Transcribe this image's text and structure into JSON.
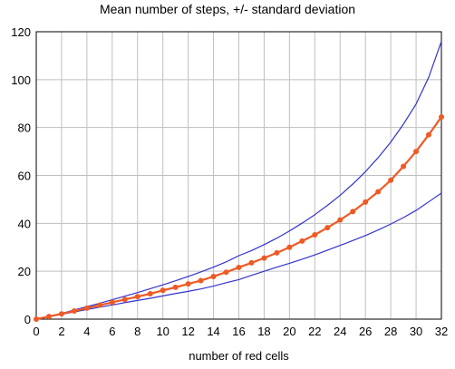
{
  "chart_data": {
    "type": "line",
    "title": "Mean number of steps, +/- standard deviation",
    "xlabel": "number of red cells",
    "ylabel": "",
    "xlim": [
      0,
      32
    ],
    "ylim": [
      0,
      120
    ],
    "xticks": [
      0,
      2,
      4,
      6,
      8,
      10,
      12,
      14,
      16,
      18,
      20,
      22,
      24,
      26,
      28,
      30,
      32
    ],
    "yticks": [
      0,
      20,
      40,
      60,
      80,
      100,
      120
    ],
    "grid": true,
    "legend": "none",
    "x": [
      0,
      1,
      2,
      3,
      4,
      5,
      6,
      7,
      8,
      9,
      10,
      11,
      12,
      13,
      14,
      15,
      16,
      17,
      18,
      19,
      20,
      21,
      22,
      23,
      24,
      25,
      26,
      27,
      28,
      29,
      30,
      31,
      32
    ],
    "series": [
      {
        "role": "mean",
        "color": "#ee5a24",
        "markers": true,
        "values": [
          0,
          1.1,
          2.2,
          3.4,
          4.6,
          5.8,
          7.0,
          8.2,
          9.4,
          10.6,
          12.0,
          13.3,
          14.7,
          16.1,
          17.8,
          19.6,
          21.6,
          23.5,
          25.5,
          27.7,
          30.0,
          32.6,
          35.2,
          38.2,
          41.4,
          44.9,
          48.9,
          53.2,
          58.0,
          63.8,
          70.0,
          77.0,
          84.4
        ]
      },
      {
        "role": "mean+sd",
        "color": "#3333cc",
        "markers": false,
        "values": [
          0,
          1.2,
          2.4,
          3.8,
          5.2,
          6.6,
          8.1,
          9.6,
          11.1,
          12.7,
          14.3,
          16.0,
          17.8,
          19.7,
          21.7,
          23.9,
          26.5,
          28.6,
          31.1,
          33.8,
          36.8,
          40.1,
          43.6,
          47.5,
          51.7,
          56.4,
          61.6,
          67.4,
          73.9,
          81.4,
          89.8,
          101.0,
          116.0
        ]
      },
      {
        "role": "mean-sd",
        "color": "#3333cc",
        "markers": false,
        "values": [
          0,
          1.0,
          2.0,
          3.0,
          4.0,
          5.0,
          5.9,
          6.9,
          7.8,
          8.7,
          9.7,
          10.7,
          11.6,
          12.6,
          13.8,
          15.2,
          16.5,
          18.3,
          20.0,
          21.7,
          23.3,
          25.0,
          26.8,
          28.8,
          30.8,
          32.8,
          34.9,
          37.2,
          39.7,
          42.4,
          45.4,
          49.0,
          52.6
        ]
      }
    ]
  }
}
